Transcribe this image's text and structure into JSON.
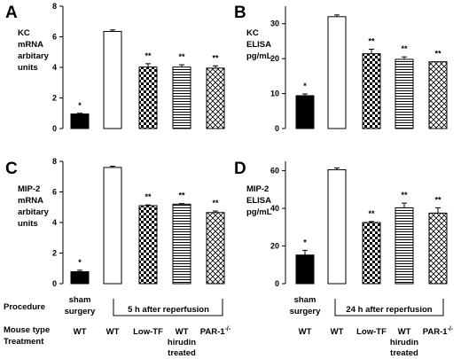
{
  "chart_data": [
    {
      "panel": "A",
      "type": "bar",
      "ylabel": [
        "KC",
        "mRNA",
        "arbitary",
        "units"
      ],
      "ylim": [
        0,
        8
      ],
      "yticks": [
        0,
        2,
        4,
        6,
        8
      ],
      "values": [
        0.95,
        6.35,
        4.02,
        4.02,
        3.95
      ],
      "errors": [
        0.05,
        0.1,
        0.22,
        0.15,
        0.15
      ],
      "significance": [
        "*",
        "",
        "**",
        "**",
        "**"
      ]
    },
    {
      "panel": "B",
      "type": "bar",
      "ylabel": [
        "KC",
        "ELISA",
        "pg/mL"
      ],
      "ylim": [
        0,
        35
      ],
      "yticks": [
        0,
        10,
        20,
        30
      ],
      "values": [
        9.4,
        32.0,
        21.4,
        19.8,
        19.1
      ],
      "errors": [
        0.5,
        0.5,
        1.3,
        0.7,
        0.0
      ],
      "significance": [
        "*",
        "",
        "**",
        "**",
        "**"
      ]
    },
    {
      "panel": "C",
      "type": "bar",
      "ylabel": [
        "MIP-2",
        "mRNA",
        "arbitary",
        "units"
      ],
      "ylim": [
        0,
        8
      ],
      "yticks": [
        0,
        2,
        4,
        6,
        8
      ],
      "values": [
        0.78,
        7.6,
        5.1,
        5.2,
        4.65
      ],
      "errors": [
        0.1,
        0.08,
        0.05,
        0.04,
        0.1
      ],
      "significance": [
        "*",
        "",
        "**",
        "**",
        "**"
      ]
    },
    {
      "panel": "D",
      "type": "bar",
      "ylabel": [
        "MIP-2",
        "ELISA",
        "pg/mL"
      ],
      "ylim": [
        0,
        65
      ],
      "yticks": [
        0,
        20,
        40,
        60
      ],
      "values": [
        15.2,
        60.5,
        32.5,
        40.3,
        37.5
      ],
      "errors": [
        2.5,
        1.0,
        0.5,
        2.5,
        2.8
      ],
      "significance": [
        "*",
        "",
        "**",
        "**",
        "**"
      ]
    }
  ],
  "bar_fills": [
    "solid-black",
    "white",
    "checkerboard",
    "horizontal-lines",
    "crosshatch"
  ],
  "legend_table": {
    "row_labels": [
      "Procedure",
      "Mouse type",
      "Treatment"
    ],
    "left": {
      "sham": [
        "sham",
        "surgery"
      ],
      "bracket": "5 h after reperfusion",
      "mouse_types": [
        "WT",
        "WT",
        "Low-TF",
        "WT",
        "PAR-1"
      ],
      "par1_sup": "-/-",
      "treatment": [
        "hirudin",
        "treated"
      ]
    },
    "right": {
      "sham": [
        "sham",
        "surgery"
      ],
      "bracket": "24 h after reperfusion",
      "mouse_types": [
        "WT",
        "WT",
        "Low-TF",
        "WT",
        "PAR-1"
      ],
      "par1_sup": "-/-",
      "treatment": [
        "hirudin",
        "treated"
      ]
    }
  },
  "colors": {
    "ink": "#000000",
    "background": "#ffffff"
  }
}
